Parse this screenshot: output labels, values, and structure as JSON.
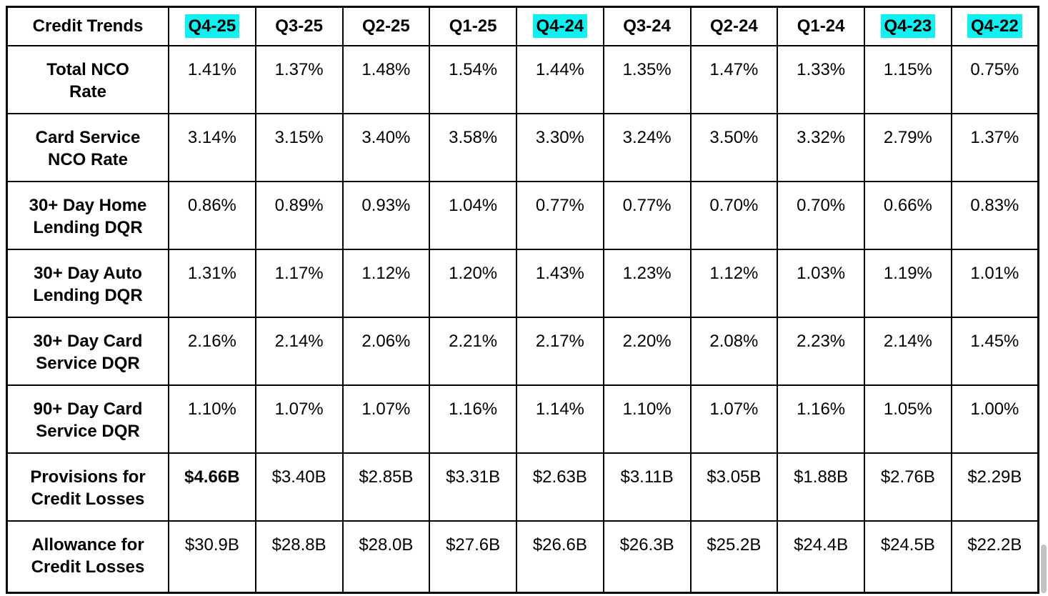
{
  "colors": {
    "highlight": "#0ff0f0",
    "border": "#000000",
    "text": "#000000",
    "scrollbar_thumb": "#c3c3c3"
  },
  "chart_data": {
    "type": "table",
    "corner_label": "Credit Trends",
    "columns": [
      {
        "label": "Q4-25",
        "highlighted": true
      },
      {
        "label": "Q3-25",
        "highlighted": false
      },
      {
        "label": "Q2-25",
        "highlighted": false
      },
      {
        "label": "Q1-25",
        "highlighted": false
      },
      {
        "label": "Q4-24",
        "highlighted": true
      },
      {
        "label": "Q3-24",
        "highlighted": false
      },
      {
        "label": "Q2-24",
        "highlighted": false
      },
      {
        "label": "Q1-24",
        "highlighted": false
      },
      {
        "label": "Q4-23",
        "highlighted": true
      },
      {
        "label": "Q4-22",
        "highlighted": true
      }
    ],
    "rows": [
      {
        "label": "Total NCO\nRate",
        "values": [
          "1.41%",
          "1.37%",
          "1.48%",
          "1.54%",
          "1.44%",
          "1.35%",
          "1.47%",
          "1.33%",
          "1.15%",
          "0.75%"
        ],
        "bold_value_indexes": []
      },
      {
        "label": "Card Service\nNCO Rate",
        "values": [
          "3.14%",
          "3.15%",
          "3.40%",
          "3.58%",
          "3.30%",
          "3.24%",
          "3.50%",
          "3.32%",
          "2.79%",
          "1.37%"
        ],
        "bold_value_indexes": []
      },
      {
        "label": "30+ Day Home\nLending DQR",
        "values": [
          "0.86%",
          "0.89%",
          "0.93%",
          "1.04%",
          "0.77%",
          "0.77%",
          "0.70%",
          "0.70%",
          "0.66%",
          "0.83%"
        ],
        "bold_value_indexes": []
      },
      {
        "label": "30+ Day Auto\nLending DQR",
        "values": [
          "1.31%",
          "1.17%",
          "1.12%",
          "1.20%",
          "1.43%",
          "1.23%",
          "1.12%",
          "1.03%",
          "1.19%",
          "1.01%"
        ],
        "bold_value_indexes": []
      },
      {
        "label": "30+ Day Card\nService DQR",
        "values": [
          "2.16%",
          "2.14%",
          "2.06%",
          "2.21%",
          "2.17%",
          "2.20%",
          "2.08%",
          "2.23%",
          "2.14%",
          "1.45%"
        ],
        "bold_value_indexes": []
      },
      {
        "label": "90+ Day Card\nService DQR",
        "values": [
          "1.10%",
          "1.07%",
          "1.07%",
          "1.16%",
          "1.14%",
          "1.10%",
          "1.07%",
          "1.16%",
          "1.05%",
          "1.00%"
        ],
        "bold_value_indexes": []
      },
      {
        "label": "Provisions for\nCredit Losses",
        "values": [
          "$4.66B",
          "$3.40B",
          "$2.85B",
          "$3.31B",
          "$2.63B",
          "$3.11B",
          "$3.05B",
          "$1.88B",
          "$2.76B",
          "$2.29B"
        ],
        "bold_value_indexes": [
          0
        ]
      },
      {
        "label": "Allowance for\nCredit Losses",
        "values": [
          "$30.9B",
          "$28.8B",
          "$28.0B",
          "$27.6B",
          "$26.6B",
          "$26.3B",
          "$25.2B",
          "$24.4B",
          "$24.5B",
          "$22.2B"
        ],
        "bold_value_indexes": []
      }
    ]
  }
}
